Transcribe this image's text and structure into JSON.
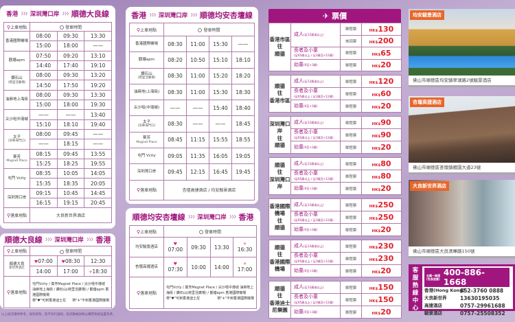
{
  "labels": {
    "board": "上車地點",
    "depart": "發車時間",
    "drop": "落車地點"
  },
  "route1": {
    "title": [
      "香港",
      "深圳灣口岸",
      "順德大良線"
    ],
    "rows": [
      {
        "station": "香港國際機場",
        "times": [
          [
            "08:00",
            "09:30",
            "13:30"
          ],
          [
            "15:00",
            "18:00",
            "——"
          ]
        ]
      },
      {
        "station": "觀塘apm",
        "times": [
          [
            "07:50",
            "09:20",
            "13:10"
          ],
          [
            "14:40",
            "17:40",
            "19:10"
          ]
        ]
      },
      {
        "station": "鑽石山",
        "sub": "(荷里活廣場)",
        "times": [
          [
            "08:00",
            "09:30",
            "13:20"
          ],
          [
            "14:50",
            "17:50",
            "19:20"
          ]
        ]
      },
      {
        "station": "油麻地上海街",
        "times": [
          [
            "08:00",
            "09:30",
            "13:30"
          ],
          [
            "15:00",
            "18:00",
            "19:30"
          ]
        ]
      },
      {
        "station": "尖沙咀中港城",
        "times": [
          [
            "——",
            "——",
            "13:40"
          ],
          [
            "15:10",
            "18:10",
            "19:40"
          ]
        ]
      },
      {
        "station": "太子",
        "sub": "(深華海門口)",
        "times": [
          [
            "08:00",
            "09:45",
            "——"
          ],
          [
            "——",
            "18:15",
            "——"
          ]
        ]
      },
      {
        "station": "葵芳",
        "sub": "Magnet Place",
        "times": [
          [
            "08:15",
            "09:45",
            "13:55"
          ],
          [
            "15:25",
            "18:25",
            "19:55"
          ]
        ]
      },
      {
        "station": "屯門 Vcity",
        "times": [
          [
            "08:35",
            "10:05",
            "14:05"
          ],
          [
            "15:35",
            "18:35",
            "20:05"
          ]
        ]
      },
      {
        "station": "深圳灣口岸",
        "times": [
          [
            "09:15",
            "10:45",
            "14:45"
          ],
          [
            "16:15",
            "19:15",
            "20:45"
          ]
        ]
      }
    ],
    "drop": "大良新世界酒店"
  },
  "route2": {
    "title": [
      "香港",
      "深圳灣口岸",
      "順德均安杏壇線"
    ],
    "rows": [
      {
        "station": "香港國際機場",
        "times": [
          [
            "08:30",
            "11:00",
            "15:30",
            "——"
          ]
        ]
      },
      {
        "station": "觀塘apm",
        "times": [
          [
            "08:20",
            "10:50",
            "15:10",
            "18:10"
          ]
        ]
      },
      {
        "station": "鑽石山",
        "sub": "(荷里活廣場)",
        "times": [
          [
            "08:30",
            "11:00",
            "15:20",
            "18:20"
          ]
        ]
      },
      {
        "station": "油麻地(上海街)",
        "times": [
          [
            "08:30",
            "11:00",
            "15:30",
            "18:30"
          ]
        ]
      },
      {
        "station": "尖沙咀(中港城)",
        "times": [
          [
            "——",
            "——",
            "15:40",
            "18:40"
          ]
        ]
      },
      {
        "station": "太子",
        "sub": "(深華海門口)",
        "times": [
          [
            "08:30",
            "——",
            "——",
            "18:45"
          ]
        ]
      },
      {
        "station": "葵芳",
        "sub": "Magnet Place",
        "times": [
          [
            "08:45",
            "11:15",
            "15:55",
            "18:55"
          ]
        ]
      },
      {
        "station": "屯門 Vcity",
        "times": [
          [
            "09:05",
            "11:35",
            "16:05",
            "19:05"
          ]
        ]
      },
      {
        "station": "深圳灣口岸",
        "times": [
          [
            "09:45",
            "12:15",
            "16:45",
            "19:45"
          ]
        ]
      }
    ],
    "drop": "杏壇高捷酒店 / 均安駿景酒店"
  },
  "route3": {
    "title": [
      "順德均安杏壇線",
      "深圳灣口岸",
      "香港"
    ],
    "rows": [
      {
        "station": "均安駿景酒店",
        "times": [
          [
            "07:00",
            "09:30",
            "13:30",
            "16:30"
          ]
        ],
        "marks": [
          [
            "m",
            "",
            "",
            "p"
          ]
        ]
      },
      {
        "station": "杏壇高捷酒店",
        "times": [
          [
            "07:30",
            "10:00",
            "14:00",
            "17:00"
          ]
        ],
        "marks": [
          [
            "m",
            "",
            "",
            "p"
          ]
        ]
      }
    ],
    "drop": "屯門Vcity / 葵芳Magnet Place / 尖沙咀中港城 油麻地上海街 / 鑽石山(荷里活廣場) / 觀塘apm 香港國際機場",
    "note_m": "帶\"♥\"可到香港迪士尼",
    "note_p": "帶\"✈\"不到香港國際機場"
  },
  "route4": {
    "title": [
      "順德大良線",
      "深圳灣口岸",
      "香港"
    ],
    "rows": [
      {
        "station": "順德大良",
        "sub": "新世界酒店",
        "times": [
          [
            "07:00",
            "08:30",
            "12:30"
          ],
          [
            "14:00",
            "17:00",
            "18:30"
          ]
        ],
        "marks": [
          [
            "m",
            "m",
            ""
          ],
          [
            "",
            "",
            "p"
          ]
        ]
      }
    ],
    "drop": "屯門Vcity / 葵芳Magnet Place / 尖沙咀中港城 油麻地上海街 / 鑽石山(荷里活廣場) / 觀塘apm 香港國際機場",
    "note_m": "帶\"♥\"可到香港迪士尼",
    "note_p": "帶\"✈\"不到香港國際機場"
  },
  "footnote": "以上班次僅供參考，如有更改，恕不另行通知，班次數據詳情以購票系統設置為準。",
  "fares": {
    "title": "票價",
    "currency": "HK$",
    "types": {
      "adult": "成人",
      "adult_note": "(足12歲或以上)",
      "senior": "長者及小童",
      "senior_note": "(足65歲以上 / 足3歲至<12歲)",
      "infant": "幼童",
      "infant_note": "(0至<3歲)"
    },
    "single": "單程票",
    "return": "來回票",
    "groups": [
      {
        "dest": "香港市區 往 順德",
        "rows": [
          [
            "adult",
            "single",
            "130"
          ],
          [
            "",
            "return",
            "200"
          ],
          [
            "senior",
            "single",
            "65"
          ],
          [
            "infant",
            "single",
            "20"
          ]
        ]
      },
      {
        "dest": "順德 往 香港市區",
        "rows": [
          [
            "adult",
            "single",
            "120"
          ],
          [
            "senior",
            "single",
            "60"
          ],
          [
            "infant",
            "single",
            "20"
          ]
        ]
      },
      {
        "dest": "深圳灣口岸 往 順德",
        "rows": [
          [
            "adult",
            "single",
            "90"
          ],
          [
            "senior",
            "single",
            "90"
          ],
          [
            "infant",
            "single",
            "20"
          ]
        ]
      },
      {
        "dest": "順德 往 深圳灣口岸",
        "rows": [
          [
            "adult",
            "single",
            "80"
          ],
          [
            "senior",
            "single",
            "80"
          ],
          [
            "infant",
            "single",
            "20"
          ]
        ]
      },
      {
        "dest": "香港國際機場 往 順德",
        "rows": [
          [
            "adult",
            "single",
            "250"
          ],
          [
            "senior",
            "single",
            "250"
          ],
          [
            "infant",
            "single",
            "20"
          ]
        ]
      },
      {
        "dest": "順德 往 香港國際機場",
        "rows": [
          [
            "adult",
            "single",
            "230"
          ],
          [
            "senior",
            "single",
            "230"
          ],
          [
            "infant",
            "single",
            "20"
          ]
        ]
      },
      {
        "dest": "順德 往 香港迪士尼樂園",
        "rows": [
          [
            "adult",
            "single",
            "150"
          ],
          [
            "senior",
            "single",
            "150"
          ],
          [
            "infant",
            "single",
            "20"
          ]
        ]
      }
    ]
  },
  "hotels": [
    {
      "name": "均安駿景酒店",
      "address": "佛山市順德區均安鎮翠湖路2號駿景酒店"
    },
    {
      "name": "杏壇高捷酒店",
      "address": "佛山市順德區杏壇鎮雁園大道23號"
    },
    {
      "name": "大良新世界酒店",
      "address": "佛山市順德區大良清暉路150號"
    }
  ],
  "hotline": {
    "side": "客服熱線中心",
    "main_label": "全國一線通(免長途費)",
    "main": "400-886-1668",
    "rows": [
      [
        "香港(Hong Kong)",
        "852-3760 0888"
      ],
      [
        "大良新世界",
        "13630195035"
      ],
      [
        "高捷酒店",
        "0757-29961688"
      ],
      [
        "駿景酒店",
        "0757-25508352"
      ]
    ]
  },
  "colors": {
    "brand": "#a0167e",
    "price": "#e01f2a",
    "tag": "#e8662a"
  }
}
